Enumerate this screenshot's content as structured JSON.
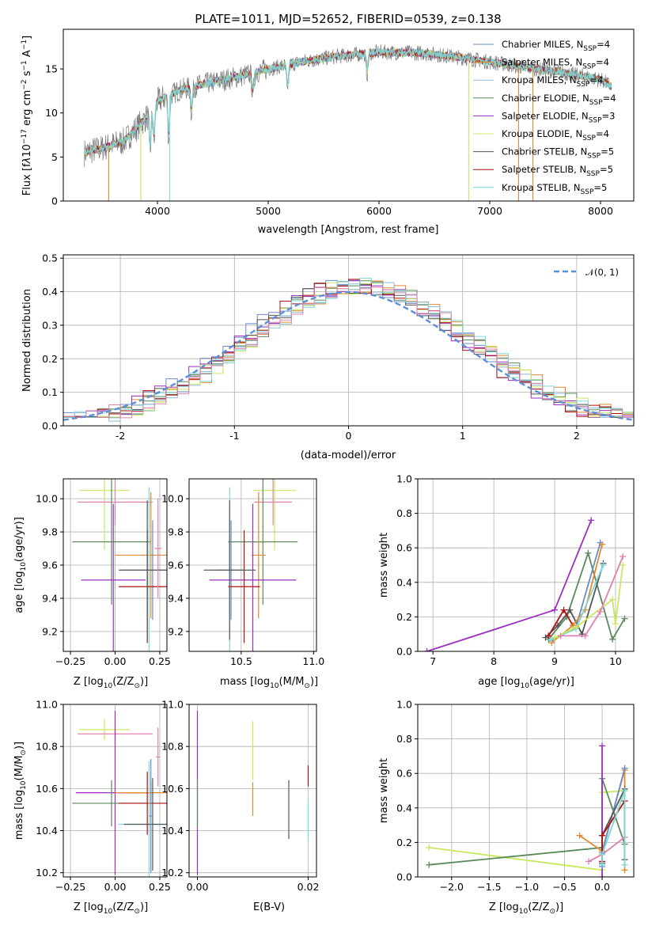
{
  "colors": {
    "Chabrier_MILES": "#6a8cc7",
    "Salpeter_MILES": "#e0892e",
    "Kroupa_MILES": "#8fb8d8",
    "Chabrier_ELODIE": "#5a8a5a",
    "Salpeter_ELODIE": "#9b30c0",
    "Kroupa_ELODIE": "#c8e860",
    "Chabrier_STELIB": "#555555",
    "Salpeter_STELIB": "#b01010",
    "Kroupa_STELIB": "#7dd8d8",
    "pink": "#e080b0",
    "orange_line": "#e07828",
    "normal_curve": "#5b8fd6"
  },
  "chart_data": [
    {
      "id": "spectrum",
      "type": "line",
      "title": "PLATE=1011, MJD=52652, FIBERID=0539, z=0.138",
      "xlabel": "wavelength [Angstrom, rest frame]",
      "ylabel_parts": [
        "Flux [f",
        "λ",
        "10",
        "−17",
        " erg cm",
        "−2",
        " s",
        "−1",
        " A",
        "−1",
        "]"
      ],
      "xlim": [
        3150,
        8300
      ],
      "ylim": [
        0,
        19.5
      ],
      "xticks": [
        4000,
        5000,
        6000,
        7000,
        8000
      ],
      "yticks": [
        0,
        5,
        10,
        15
      ],
      "grid": false,
      "legend_placement": "right",
      "legend": [
        {
          "base": "Chabrier MILES, N",
          "sub": "SSP",
          "tail": "=4",
          "color_key": "Chabrier_MILES"
        },
        {
          "base": "Salpeter MILES, N",
          "sub": "SSP",
          "tail": "=4",
          "color_key": "Salpeter_MILES"
        },
        {
          "base": "Kroupa MILES, N",
          "sub": "SSP",
          "tail": "=4",
          "color_key": "Kroupa_MILES"
        },
        {
          "base": "Chabrier ELODIE, N",
          "sub": "SSP",
          "tail": "=4",
          "color_key": "Chabrier_ELODIE"
        },
        {
          "base": "Salpeter ELODIE, N",
          "sub": "SSP",
          "tail": "=3",
          "color_key": "Salpeter_ELODIE"
        },
        {
          "base": "Kroupa ELODIE, N",
          "sub": "SSP",
          "tail": "=4",
          "color_key": "Kroupa_ELODIE"
        },
        {
          "base": "Chabrier STELIB, N",
          "sub": "SSP",
          "tail": "=5",
          "color_key": "Chabrier_STELIB"
        },
        {
          "base": "Salpeter STELIB, N",
          "sub": "SSP",
          "tail": "=5",
          "color_key": "Salpeter_STELIB"
        },
        {
          "base": "Kroupa STELIB, N",
          "sub": "SSP",
          "tail": "=5",
          "color_key": "Kroupa_STELIB"
        }
      ],
      "continuum": {
        "x": [
          3340,
          3500,
          3700,
          3900,
          4000,
          4200,
          4500,
          4800,
          5000,
          5300,
          5600,
          6000,
          6400,
          6800,
          7200,
          7600,
          8000,
          8100
        ],
        "y": [
          5.5,
          6.0,
          6.8,
          9.5,
          11.3,
          12.6,
          13.5,
          14.3,
          15.0,
          15.8,
          16.4,
          16.9,
          16.8,
          16.2,
          15.4,
          14.7,
          13.8,
          13.0
        ]
      },
      "absorption_lines": [
        {
          "x": 3934,
          "depth": 4.5
        },
        {
          "x": 3969,
          "depth": 4.0
        },
        {
          "x": 4102,
          "depth": 5.0
        },
        {
          "x": 4308,
          "depth": 3.0
        },
        {
          "x": 4861,
          "depth": 2.5
        },
        {
          "x": 5175,
          "depth": 3.0
        },
        {
          "x": 5893,
          "depth": 2.5
        }
      ],
      "model_dropouts": [
        {
          "x": 3560,
          "color_key": "Salpeter_MILES"
        },
        {
          "x": 3850,
          "color_key": "Kroupa_ELODIE"
        },
        {
          "x": 4110,
          "color_key": "Kroupa_STELIB"
        },
        {
          "x": 6810,
          "color_key": "Kroupa_ELODIE"
        },
        {
          "x": 7260,
          "color_key": "Salpeter_MILES"
        },
        {
          "x": 7390,
          "color_key": "Salpeter_MILES"
        }
      ]
    },
    {
      "id": "residual-hist",
      "type": "line",
      "xlabel": "(data-model)/error",
      "ylabel": "Normed distribution",
      "xlim": [
        -2.5,
        2.5
      ],
      "ylim": [
        0,
        0.51
      ],
      "xticks": [
        -2,
        -1,
        0,
        1,
        2
      ],
      "yticks": [
        0.0,
        0.1,
        0.2,
        0.3,
        0.4,
        0.5
      ],
      "grid": true,
      "legend_placement": "top-right",
      "legend_label": "𝒩(0, 1)",
      "bin_width": 0.1,
      "series_color_keys": [
        "Chabrier_MILES",
        "Salpeter_MILES",
        "Kroupa_MILES",
        "Chabrier_ELODIE",
        "Salpeter_ELODIE",
        "Kroupa_ELODIE",
        "Chabrier_STELIB",
        "Salpeter_STELIB",
        "Kroupa_STELIB",
        "pink"
      ]
    },
    {
      "id": "age-vs-Z",
      "type": "scatter",
      "xlabel_parts": [
        "Z [log",
        "10",
        "(Z/Z",
        "⊙",
        ")]"
      ],
      "ylabel_parts": [
        "age  [log",
        "10",
        "(age/yr)]"
      ],
      "xlim": [
        -0.29,
        0.29
      ],
      "ylim": [
        9.08,
        10.12
      ],
      "xticks": [
        -0.25,
        0.0,
        0.25
      ],
      "xtick_labels": [
        "−0.25",
        "0.00",
        "0.25"
      ],
      "yticks": [
        9.2,
        9.4,
        9.6,
        9.8,
        10.0
      ],
      "grid": true,
      "points": [
        {
          "x": -0.06,
          "y": 10.05,
          "xerr": 0.14,
          "yerr": 0.36,
          "color_key": "Kroupa_ELODIE"
        },
        {
          "x": 0.0,
          "y": 9.98,
          "xerr": 0.21,
          "yerr": 0.14,
          "color_key": "pink"
        },
        {
          "x": -0.02,
          "y": 9.74,
          "xerr": 0.22,
          "yerr": 0.38,
          "color_key": "Chabrier_ELODIE"
        },
        {
          "x": 0.2,
          "y": 9.66,
          "xerr": 0.2,
          "yerr": 0.38,
          "color_key": "Salpeter_MILES"
        },
        {
          "x": 0.19,
          "y": 9.57,
          "xerr": 0.17,
          "yerr": 0.5,
          "color_key": "Kroupa_STELIB"
        },
        {
          "x": 0.21,
          "y": 9.57,
          "xerr": 0.16,
          "yerr": 0.3,
          "color_key": "Chabrier_MILES"
        },
        {
          "x": -0.01,
          "y": 9.51,
          "xerr": 0.18,
          "yerr": 0.46,
          "color_key": "Salpeter_ELODIE"
        },
        {
          "x": 0.18,
          "y": 9.47,
          "xerr": 0.16,
          "yerr": 0.34,
          "color_key": "Salpeter_STELIB"
        },
        {
          "x": 0.18,
          "y": 9.57,
          "xerr": 0.16,
          "yerr": 0.42,
          "color_key": "Chabrier_STELIB"
        },
        {
          "x": 0.24,
          "y": 9.7,
          "xerr": 0.02,
          "yerr": 0.3,
          "color_key": "pink"
        }
      ]
    },
    {
      "id": "age-vs-mass",
      "type": "scatter",
      "xlabel_parts": [
        "mass [log",
        "10",
        "(M/M",
        "⊙",
        ")]"
      ],
      "xlim": [
        10.14,
        11.02
      ],
      "ylim": [
        9.08,
        10.12
      ],
      "xticks": [
        10.5,
        11.0
      ],
      "xtick_labels": [
        "10.5",
        "11.0"
      ],
      "yticks": [
        9.2,
        9.4,
        9.6,
        9.8,
        10.0
      ],
      "grid": true,
      "points": [
        {
          "x": 10.73,
          "y": 10.05,
          "xerr": 0.15,
          "yerr": 0.36,
          "color_key": "Kroupa_ELODIE"
        },
        {
          "x": 10.72,
          "y": 9.98,
          "xerr": 0.13,
          "yerr": 0.14,
          "color_key": "pink"
        },
        {
          "x": 10.65,
          "y": 9.74,
          "xerr": 0.24,
          "yerr": 0.38,
          "color_key": "Chabrier_ELODIE"
        },
        {
          "x": 10.62,
          "y": 9.66,
          "xerr": 0.05,
          "yerr": 0.38,
          "color_key": "Salpeter_MILES"
        },
        {
          "x": 10.42,
          "y": 9.57,
          "xerr": 0.17,
          "yerr": 0.5,
          "color_key": "Kroupa_STELIB"
        },
        {
          "x": 10.43,
          "y": 9.57,
          "xerr": 0.09,
          "yerr": 0.3,
          "color_key": "Chabrier_MILES"
        },
        {
          "x": 10.58,
          "y": 9.51,
          "xerr": 0.3,
          "yerr": 0.46,
          "color_key": "Salpeter_ELODIE"
        },
        {
          "x": 10.52,
          "y": 9.47,
          "xerr": 0.11,
          "yerr": 0.34,
          "color_key": "Salpeter_STELIB"
        },
        {
          "x": 10.42,
          "y": 9.57,
          "xerr": 0.18,
          "yerr": 0.42,
          "color_key": "Chabrier_STELIB"
        }
      ]
    },
    {
      "id": "mass-weight-vs-age",
      "type": "line",
      "xlabel_parts": [
        "age  [log",
        "10",
        "(age/yr)]"
      ],
      "ylabel": "mass weight",
      "xlim": [
        6.75,
        10.3
      ],
      "ylim": [
        0,
        1.0
      ],
      "xticks": [
        7,
        8,
        9,
        10
      ],
      "yticks": [
        0.0,
        0.2,
        0.4,
        0.6,
        0.8,
        1.0
      ],
      "grid": true,
      "series": [
        {
          "color_key": "Salpeter_ELODIE",
          "x": [
            6.9,
            9.0,
            9.6
          ],
          "y": [
            0.0,
            0.24,
            0.76
          ]
        },
        {
          "color_key": "Chabrier_ELODIE",
          "x": [
            8.9,
            9.2,
            9.55,
            9.95,
            10.15
          ],
          "y": [
            0.07,
            0.2,
            0.57,
            0.07,
            0.19
          ]
        },
        {
          "color_key": "Chabrier_STELIB",
          "x": [
            8.85,
            9.05,
            9.25,
            9.45,
            9.8
          ],
          "y": [
            0.08,
            0.15,
            0.24,
            0.1,
            0.51
          ]
        },
        {
          "color_key": "Salpeter_STELIB",
          "x": [
            8.9,
            9.15,
            9.3
          ],
          "y": [
            0.09,
            0.24,
            0.15
          ]
        },
        {
          "color_key": "Chabrier_MILES",
          "x": [
            8.95,
            9.35,
            9.75
          ],
          "y": [
            0.06,
            0.14,
            0.63
          ]
        },
        {
          "color_key": "Salpeter_MILES",
          "x": [
            8.95,
            9.3,
            9.5,
            9.78
          ],
          "y": [
            0.05,
            0.15,
            0.24,
            0.62
          ]
        },
        {
          "color_key": "Kroupa_STELIB",
          "x": [
            8.95,
            9.35,
            9.8
          ],
          "y": [
            0.07,
            0.13,
            0.5
          ]
        },
        {
          "color_key": "Kroupa_ELODIE",
          "x": [
            9.0,
            9.35,
            9.95,
            10.0,
            10.12
          ],
          "y": [
            0.08,
            0.14,
            0.3,
            0.16,
            0.5
          ]
        },
        {
          "color_key": "pink",
          "x": [
            9.1,
            9.5,
            9.75,
            10.12
          ],
          "y": [
            0.09,
            0.09,
            0.23,
            0.55
          ]
        }
      ]
    },
    {
      "id": "mass-vs-Z",
      "type": "scatter",
      "xlabel_parts": [
        "Z [log",
        "10",
        "(Z/Z",
        "⊙",
        ")]"
      ],
      "ylabel_parts": [
        "mass [log",
        "10",
        "(M/M",
        "⊙",
        ")]"
      ],
      "xlim": [
        -0.29,
        0.29
      ],
      "ylim": [
        10.18,
        11.0
      ],
      "xticks": [
        -0.25,
        0.0,
        0.25
      ],
      "xtick_labels": [
        "−0.25",
        "0.00",
        "0.25"
      ],
      "yticks": [
        10.2,
        10.4,
        10.6,
        10.8,
        11.0
      ],
      "grid": true,
      "points": [
        {
          "x": -0.06,
          "y": 10.88,
          "xerr": 0.14,
          "yerr": 0.05,
          "color_key": "Kroupa_ELODIE"
        },
        {
          "x": 0.0,
          "y": 10.86,
          "xerr": 0.21,
          "yerr": 0.03,
          "color_key": "pink"
        },
        {
          "x": 0.0,
          "y": 10.58,
          "xerr": 0.22,
          "yerr": 0.39,
          "color_key": "Salpeter_ELODIE"
        },
        {
          "x": -0.02,
          "y": 10.53,
          "xerr": 0.22,
          "yerr": 0.11,
          "color_key": "Chabrier_ELODIE"
        },
        {
          "x": 0.2,
          "y": 10.58,
          "xerr": 0.2,
          "yerr": 0.05,
          "color_key": "Salpeter_MILES"
        },
        {
          "x": 0.18,
          "y": 10.53,
          "xerr": 0.16,
          "yerr": 0.15,
          "color_key": "Salpeter_STELIB"
        },
        {
          "x": 0.19,
          "y": 10.43,
          "xerr": 0.17,
          "yerr": 0.3,
          "color_key": "Kroupa_STELIB"
        },
        {
          "x": 0.21,
          "y": 10.43,
          "xerr": 0.16,
          "yerr": 0.22,
          "color_key": "Chabrier_STELIB"
        },
        {
          "x": 0.2,
          "y": 10.47,
          "xerr": 0.01,
          "yerr": 0.27,
          "color_key": "Chabrier_MILES"
        },
        {
          "x": 0.24,
          "y": 10.75,
          "xerr": 0.01,
          "yerr": 0.14,
          "color_key": "pink"
        }
      ]
    },
    {
      "id": "mass-vs-ebv",
      "type": "scatter",
      "xlabel": "E(B-V)",
      "xlim": [
        -0.0015,
        0.0215
      ],
      "ylim": [
        10.18,
        11.0
      ],
      "xticks": [
        0.0,
        0.02
      ],
      "xtick_labels": [
        "0.00",
        "0.02"
      ],
      "yticks": [
        10.2,
        10.4,
        10.6,
        10.8,
        11.0
      ],
      "grid": true,
      "points": [
        {
          "x": 0.0,
          "y": 10.58,
          "yerr": 0.39,
          "color_key": "Salpeter_ELODIE"
        },
        {
          "x": 0.0,
          "y": 10.53,
          "yerr": 0.11,
          "color_key": "Chabrier_ELODIE"
        },
        {
          "x": 0.01,
          "y": 10.78,
          "yerr": 0.14,
          "color_key": "Kroupa_ELODIE"
        },
        {
          "x": 0.01,
          "y": 10.55,
          "yerr": 0.08,
          "color_key": "Salpeter_MILES"
        },
        {
          "x": 0.0165,
          "y": 10.5,
          "yerr": 0.14,
          "color_key": "Chabrier_STELIB"
        },
        {
          "x": 0.02,
          "y": 10.66,
          "yerr": 0.05,
          "color_key": "Salpeter_STELIB"
        },
        {
          "x": 0.02,
          "y": 10.45,
          "yerr": 0.1,
          "color_key": "Kroupa_STELIB"
        }
      ]
    },
    {
      "id": "mass-weight-vs-Z",
      "type": "line",
      "xlabel_parts": [
        "Z [log",
        "10",
        "(Z/Z",
        "⊙",
        ")]"
      ],
      "ylabel": "mass weight",
      "xlim": [
        -2.45,
        0.42
      ],
      "ylim": [
        0,
        1.0
      ],
      "xticks": [
        -2.0,
        -1.5,
        -1.0,
        -0.5,
        0.0
      ],
      "xtick_labels": [
        "−2.0",
        "−1.5",
        "−1.0",
        "−0.5",
        "0.0"
      ],
      "yticks": [
        0.0,
        0.2,
        0.4,
        0.6,
        0.8,
        1.0
      ],
      "grid": true,
      "series": [
        {
          "color_key": "Kroupa_ELODIE",
          "x": [
            -2.3,
            0.0,
            0.0,
            0.3
          ],
          "y": [
            0.17,
            0.04,
            0.49,
            0.5
          ]
        },
        {
          "color_key": "Chabrier_ELODIE",
          "x": [
            -2.3,
            0.0,
            0.0,
            0.3
          ],
          "y": [
            0.07,
            0.17,
            0.57,
            0.19
          ]
        },
        {
          "color_key": "Salpeter_ELODIE",
          "x": [
            0.0,
            0.0,
            0.0
          ],
          "y": [
            0.76,
            0.24,
            0.0
          ]
        },
        {
          "color_key": "pink",
          "x": [
            -0.18,
            0.0,
            0.3
          ],
          "y": [
            0.09,
            0.13,
            0.23
          ]
        },
        {
          "color_key": "Salpeter_MILES",
          "x": [
            -0.3,
            0.0,
            0.3,
            0.3
          ],
          "y": [
            0.24,
            0.15,
            0.62,
            0.04
          ]
        },
        {
          "color_key": "Chabrier_MILES",
          "x": [
            0.0,
            0.0,
            0.3
          ],
          "y": [
            0.06,
            0.14,
            0.63
          ]
        },
        {
          "color_key": "Chabrier_STELIB",
          "x": [
            0.0,
            0.0,
            0.3,
            0.3
          ],
          "y": [
            0.08,
            0.24,
            0.51,
            0.1
          ]
        },
        {
          "color_key": "Salpeter_STELIB",
          "x": [
            0.0,
            0.0,
            0.3
          ],
          "y": [
            0.09,
            0.24,
            0.44
          ]
        },
        {
          "color_key": "Kroupa_STELIB",
          "x": [
            0.0,
            0.0,
            0.3,
            0.3
          ],
          "y": [
            0.07,
            0.13,
            0.5,
            0.07
          ]
        }
      ]
    }
  ]
}
